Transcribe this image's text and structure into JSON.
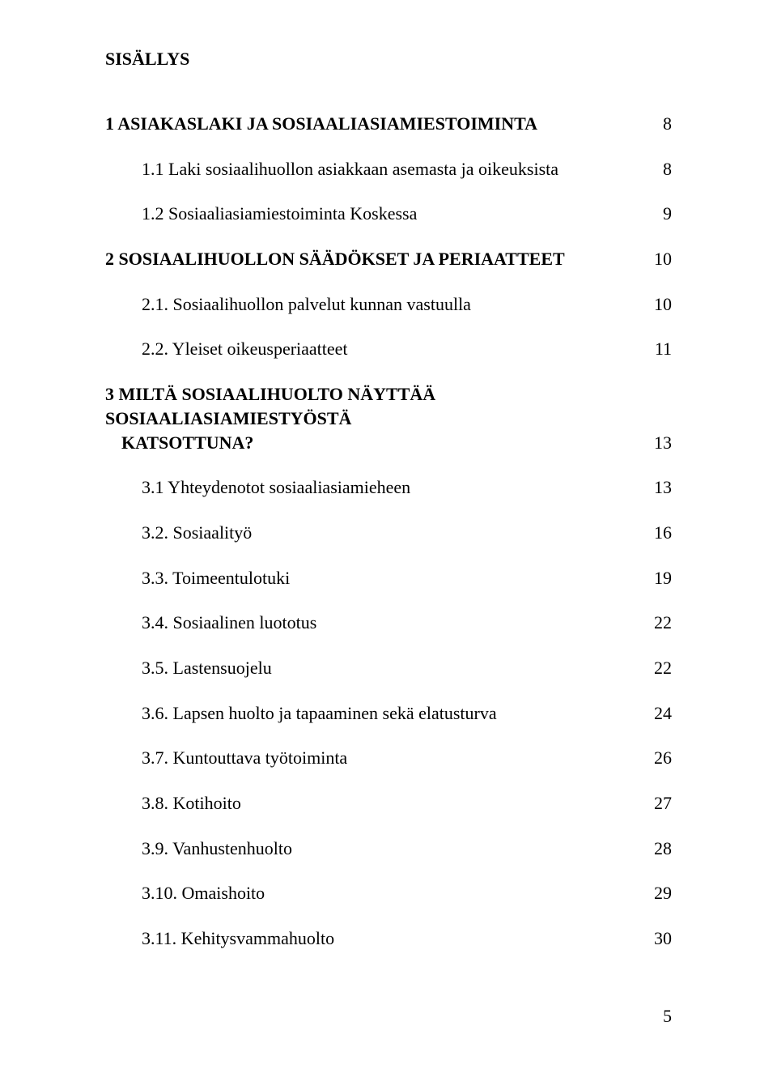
{
  "colors": {
    "background": "#ffffff",
    "text": "#000000"
  },
  "typography": {
    "font_family": "Georgia, Times New Roman, serif",
    "body_size_pt": 17,
    "heading_weight": "bold"
  },
  "heading": "SISÄLLYS",
  "entries": [
    {
      "kind": "chapter",
      "text": "1 ASIAKASLAKI JA SOSIAALIASIAMIESTOIMINTA",
      "page": "8"
    },
    {
      "kind": "sub",
      "text": "1.1 Laki sosiaalihuollon asiakkaan asemasta ja oikeuksista",
      "page": "8"
    },
    {
      "kind": "sub",
      "text": "1.2 Sosiaaliasiamiestoiminta Koskessa",
      "page": "9"
    },
    {
      "kind": "chapter",
      "text": "2 SOSIAALIHUOLLON SÄÄDÖKSET JA PERIAATTEET",
      "page": "10"
    },
    {
      "kind": "sub",
      "text": "2.1. Sosiaalihuollon palvelut kunnan vastuulla",
      "page": "10"
    },
    {
      "kind": "sub",
      "text": "2.2. Yleiset oikeusperiaatteet",
      "page": "11"
    },
    {
      "kind": "multiline",
      "line1": "3 MILTÄ SOSIAALIHUOLTO NÄYTTÄÄ SOSIAALIASIAMIESTYÖSTÄ",
      "line2": "KATSOTTUNA?",
      "page": "13"
    },
    {
      "kind": "sub",
      "text": "3.1 Yhteydenotot sosiaaliasiamieheen",
      "page": "13"
    },
    {
      "kind": "sub",
      "text": "3.2. Sosiaalityö",
      "page": "16"
    },
    {
      "kind": "sub",
      "text": "3.3. Toimeentulotuki",
      "page": "19"
    },
    {
      "kind": "sub",
      "text": "3.4. Sosiaalinen luototus",
      "page": "22"
    },
    {
      "kind": "sub",
      "text": "3.5. Lastensuojelu",
      "page": "22"
    },
    {
      "kind": "sub",
      "text": "3.6. Lapsen huolto ja tapaaminen sekä elatusturva",
      "page": "24"
    },
    {
      "kind": "sub",
      "text": "3.7. Kuntouttava työtoiminta",
      "page": "26"
    },
    {
      "kind": "sub",
      "text": "3.8. Kotihoito",
      "page": "27"
    },
    {
      "kind": "sub",
      "text": "3.9. Vanhustenhuolto",
      "page": "28"
    },
    {
      "kind": "sub",
      "text": "3.10. Omaishoito",
      "page": "29"
    },
    {
      "kind": "sub",
      "text": "3.11. Kehitysvammahuolto",
      "page": "30"
    }
  ],
  "footer_page": "5"
}
